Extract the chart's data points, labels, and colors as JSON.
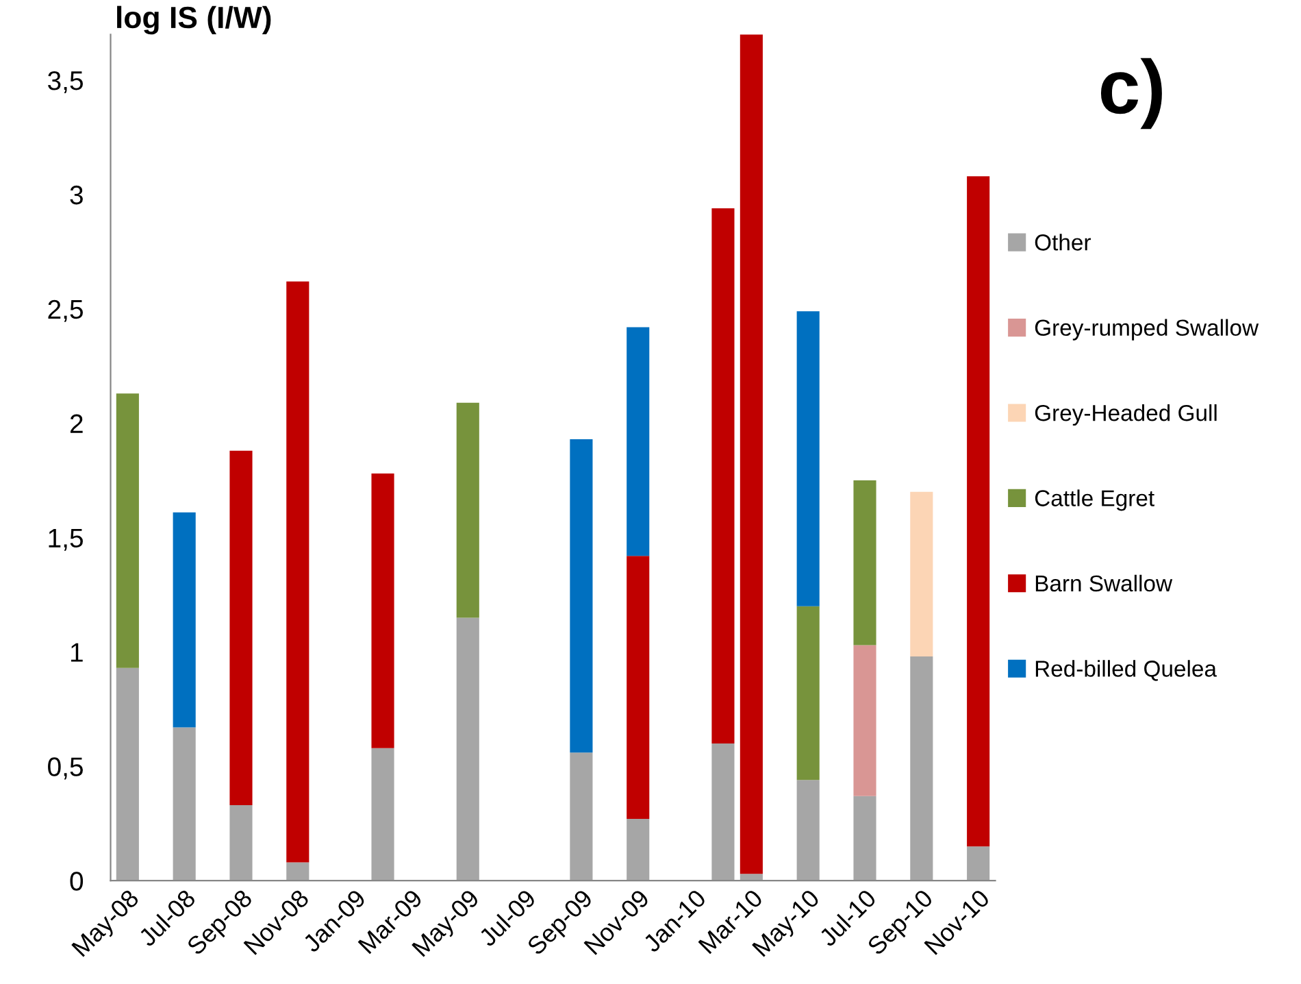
{
  "chart_data": {
    "type": "bar",
    "stacked": true,
    "ylabel": "log IS (I/W)",
    "annotations": [
      "c)"
    ],
    "categories": [
      "May-08",
      null,
      "Jul-08",
      null,
      "Sep-08",
      null,
      "Nov-08",
      null,
      "Jan-09",
      null,
      "Mar-09",
      null,
      "May-09",
      null,
      "Jul-09",
      null,
      "Sep-09",
      null,
      "Nov-09",
      null,
      "Jan-10",
      null,
      "Mar-10",
      null,
      "May-10",
      null,
      "Jul-10",
      null,
      "Sep-10",
      null,
      "Nov-10"
    ],
    "series": [
      {
        "name": "Other",
        "color": "#a6a6a6",
        "values": [
          0.93,
          null,
          0.67,
          null,
          0.33,
          null,
          0.08,
          null,
          null,
          0.58,
          null,
          null,
          1.15,
          null,
          null,
          null,
          0.56,
          null,
          0.27,
          null,
          null,
          0.6,
          0.03,
          null,
          0.44,
          null,
          0.37,
          null,
          0.98,
          null,
          0.15
        ]
      },
      {
        "name": "Grey-rumped Swallow",
        "color": "#d99694",
        "values": [
          null,
          null,
          null,
          null,
          null,
          null,
          null,
          null,
          null,
          null,
          null,
          null,
          null,
          null,
          null,
          null,
          null,
          null,
          null,
          null,
          null,
          null,
          null,
          null,
          null,
          null,
          0.66,
          null,
          null,
          null,
          null
        ]
      },
      {
        "name": "Grey-Headed Gull",
        "color": "#fcd5b5",
        "values": [
          null,
          null,
          null,
          null,
          null,
          null,
          null,
          null,
          null,
          null,
          null,
          null,
          null,
          null,
          null,
          null,
          null,
          null,
          null,
          null,
          null,
          null,
          null,
          null,
          null,
          null,
          null,
          null,
          0.72,
          null,
          null
        ]
      },
      {
        "name": "Cattle Egret",
        "color": "#77933c",
        "values": [
          1.2,
          null,
          null,
          null,
          null,
          null,
          null,
          null,
          null,
          null,
          null,
          null,
          0.94,
          null,
          null,
          null,
          null,
          null,
          null,
          null,
          null,
          null,
          null,
          null,
          0.76,
          null,
          0.72,
          null,
          null,
          null,
          null
        ]
      },
      {
        "name": "Barn Swallow",
        "color": "#c00000",
        "values": [
          null,
          null,
          null,
          null,
          1.55,
          null,
          2.54,
          null,
          null,
          1.2,
          null,
          null,
          null,
          null,
          null,
          null,
          null,
          null,
          1.15,
          null,
          null,
          2.34,
          3.67,
          null,
          null,
          null,
          null,
          null,
          null,
          null,
          2.93
        ]
      },
      {
        "name": "Red-billed Quelea",
        "color": "#0070c0",
        "values": [
          null,
          null,
          0.94,
          null,
          null,
          null,
          null,
          null,
          null,
          null,
          null,
          null,
          null,
          null,
          null,
          null,
          1.37,
          null,
          1.0,
          null,
          null,
          null,
          null,
          null,
          1.29,
          null,
          null,
          null,
          null,
          null,
          null
        ]
      }
    ],
    "ylim": [
      0,
      3.7
    ],
    "yticks": [
      0,
      {
        "value": 0.5,
        "label": "0,5"
      },
      1,
      {
        "value": 1.5,
        "label": "1,5"
      },
      2,
      {
        "value": 2.5,
        "label": "2,5"
      },
      3,
      {
        "value": 3.5,
        "label": "3,5"
      }
    ],
    "grid": false,
    "legend": "right"
  }
}
